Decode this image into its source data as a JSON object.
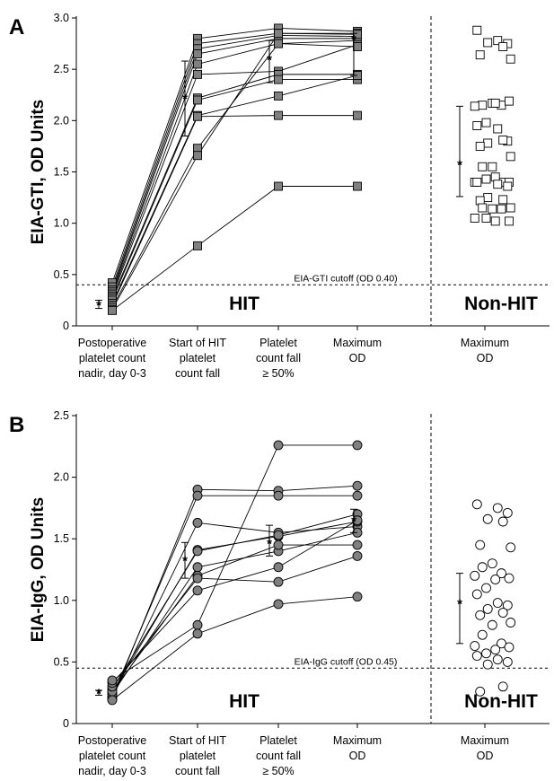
{
  "chart_data": [
    {
      "panel": "A",
      "type": "scatter",
      "ylabel": "EIA-GTI, OD Units",
      "ylim": [
        0,
        3.0
      ],
      "yticks": [
        "0",
        "0.5",
        "1.0",
        "1.5",
        "2.0",
        "2.5",
        "3.0"
      ],
      "categories": [
        [
          "Postoperative",
          "platelet count",
          "nadir, day  0-3"
        ],
        [
          "Start of HIT",
          "platelet",
          "count fall"
        ],
        [
          "Platelet",
          "count fall",
          "≥ 50%"
        ],
        [
          "Maximum",
          "OD"
        ],
        [
          "Maximum",
          "OD"
        ]
      ],
      "group_labels": [
        "HIT",
        "Non-HIT"
      ],
      "cutoff": {
        "value": 0.4,
        "label": "EIA-GTI cutoff (OD 0.40)"
      },
      "marker": "square",
      "hit_patients": [
        [
          0.42,
          2.8,
          2.9,
          2.87
        ],
        [
          0.38,
          2.75,
          2.85,
          2.85
        ],
        [
          0.35,
          2.7,
          2.83,
          2.82
        ],
        [
          0.33,
          2.65,
          2.8,
          2.8
        ],
        [
          0.31,
          2.55,
          2.75,
          2.78
        ],
        [
          0.29,
          2.45,
          2.48,
          2.74
        ],
        [
          0.27,
          2.22,
          2.45,
          2.45
        ],
        [
          0.25,
          2.2,
          2.4,
          2.4
        ],
        [
          0.22,
          2.05,
          2.24,
          2.44
        ],
        [
          0.2,
          2.04,
          2.05,
          2.05
        ],
        [
          0.18,
          1.73,
          2.75,
          2.72
        ],
        [
          0.16,
          1.66,
          2.85,
          2.84
        ],
        [
          0.15,
          0.78,
          1.36,
          1.36
        ]
      ],
      "hit_mean_sd": [
        {
          "mean": 0.21,
          "low": 0.17,
          "high": 0.25
        },
        {
          "mean": 2.22,
          "low": 1.85,
          "high": 2.58
        },
        {
          "mean": 2.6,
          "low": 2.37,
          "high": 2.78
        },
        {
          "mean": 2.8,
          "low": 2.44,
          "high": 2.85
        }
      ],
      "non_hit_values": [
        2.88,
        2.78,
        2.75,
        2.76,
        2.72,
        2.64,
        2.6,
        2.17,
        2.15,
        2.15,
        2.14,
        2.19,
        2.17,
        1.98,
        1.95,
        1.92,
        1.8,
        1.78,
        1.81,
        1.75,
        1.65,
        1.55,
        1.55,
        1.4,
        1.4,
        1.4,
        1.45,
        1.43,
        1.4,
        1.38,
        1.36,
        1.25,
        1.23,
        1.22,
        1.15,
        1.14,
        1.15,
        1.14,
        1.05,
        1.02,
        1.02,
        1.05
      ],
      "non_hit_mean_sd": {
        "mean": 1.58,
        "low": 1.26,
        "high": 2.14
      }
    },
    {
      "panel": "B",
      "type": "scatter",
      "ylabel": "EIA-IgG, OD Units",
      "ylim": [
        0,
        2.5
      ],
      "yticks": [
        "0",
        "0.5",
        "1.0",
        "1.5",
        "2.0",
        "2.5"
      ],
      "categories": [
        [
          "Postoperative",
          "platelet count",
          "nadir, day  0-3"
        ],
        [
          "Start of HIT",
          "platelet",
          "count fall"
        ],
        [
          "Platelet",
          "count fall",
          "≥ 50%"
        ],
        [
          "Maximum",
          "OD"
        ],
        [
          "Maximum",
          "OD"
        ]
      ],
      "group_labels": [
        "HIT",
        "Non-HIT"
      ],
      "cutoff": {
        "value": 0.45,
        "label": "EIA-IgG cutoff (OD 0.45)"
      },
      "marker": "circle",
      "hit_patients": [
        [
          0.2,
          1.9,
          1.89,
          1.93
        ],
        [
          0.22,
          1.85,
          1.85,
          1.85
        ],
        [
          0.21,
          1.63,
          1.55,
          1.6
        ],
        [
          0.25,
          1.41,
          1.52,
          1.64
        ],
        [
          0.28,
          1.4,
          1.53,
          1.7
        ],
        [
          0.24,
          1.27,
          1.4,
          1.55
        ],
        [
          0.26,
          1.2,
          1.45,
          1.45
        ],
        [
          0.3,
          1.18,
          1.15,
          1.36
        ],
        [
          0.33,
          1.08,
          1.27,
          1.65
        ],
        [
          0.35,
          0.8,
          2.26,
          2.26
        ],
        [
          0.19,
          0.73,
          0.97,
          1.03
        ]
      ],
      "hit_mean_sd": [
        {
          "mean": 0.25,
          "low": 0.23,
          "high": 0.27
        },
        {
          "mean": 1.33,
          "low": 1.18,
          "high": 1.47
        },
        {
          "mean": 1.47,
          "low": 1.36,
          "high": 1.61
        },
        {
          "mean": 1.65,
          "low": 1.55,
          "high": 1.74
        }
      ],
      "non_hit_values": [
        1.78,
        1.75,
        1.71,
        1.66,
        1.64,
        1.45,
        1.43,
        1.3,
        1.27,
        1.22,
        1.2,
        1.18,
        1.17,
        1.1,
        1.05,
        0.98,
        0.96,
        0.93,
        0.9,
        0.88,
        0.82,
        0.8,
        0.72,
        0.65,
        0.63,
        0.62,
        0.6,
        0.57,
        0.55,
        0.52,
        0.5,
        0.48,
        0.3,
        0.26
      ],
      "non_hit_mean_sd": {
        "mean": 0.98,
        "low": 0.65,
        "high": 1.22
      }
    }
  ]
}
